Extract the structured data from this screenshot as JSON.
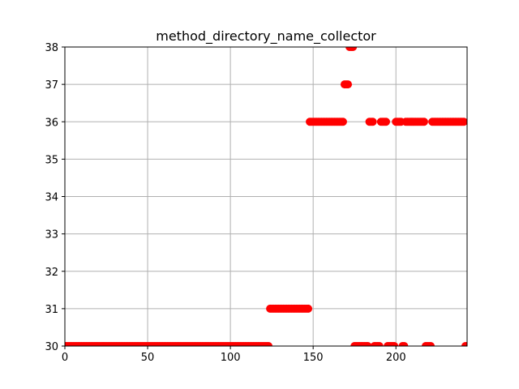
{
  "chart_data": {
    "type": "scatter",
    "title": "method_directory_name_collector",
    "xlabel": "",
    "ylabel": "",
    "xlim": [
      0,
      243
    ],
    "ylim": [
      30,
      38
    ],
    "xticks": [
      0,
      50,
      100,
      150,
      200
    ],
    "yticks": [
      30,
      31,
      32,
      33,
      34,
      35,
      36,
      37,
      38
    ],
    "grid": true,
    "marker_color": "#ff0000",
    "segments": [
      {
        "x_start": 0,
        "x_end": 123,
        "y": 30
      },
      {
        "x_start": 124,
        "x_end": 147,
        "y": 31
      },
      {
        "x_start": 148,
        "x_end": 168,
        "y": 36
      },
      {
        "x_start": 169,
        "x_end": 171,
        "y": 37
      },
      {
        "x_start": 172,
        "x_end": 174,
        "y": 38
      },
      {
        "x_start": 175,
        "x_end": 183,
        "y": 30
      },
      {
        "x_start": 184,
        "x_end": 186,
        "y": 36
      },
      {
        "x_start": 187,
        "x_end": 190,
        "y": 30
      },
      {
        "x_start": 191,
        "x_end": 194,
        "y": 36
      },
      {
        "x_start": 195,
        "x_end": 199,
        "y": 30
      },
      {
        "x_start": 200,
        "x_end": 203,
        "y": 36
      },
      {
        "x_start": 204,
        "x_end": 205,
        "y": 30
      },
      {
        "x_start": 206,
        "x_end": 217,
        "y": 36
      },
      {
        "x_start": 218,
        "x_end": 221,
        "y": 30
      },
      {
        "x_start": 222,
        "x_end": 241,
        "y": 36
      },
      {
        "x_start": 242,
        "x_end": 243,
        "y": 30
      }
    ]
  }
}
